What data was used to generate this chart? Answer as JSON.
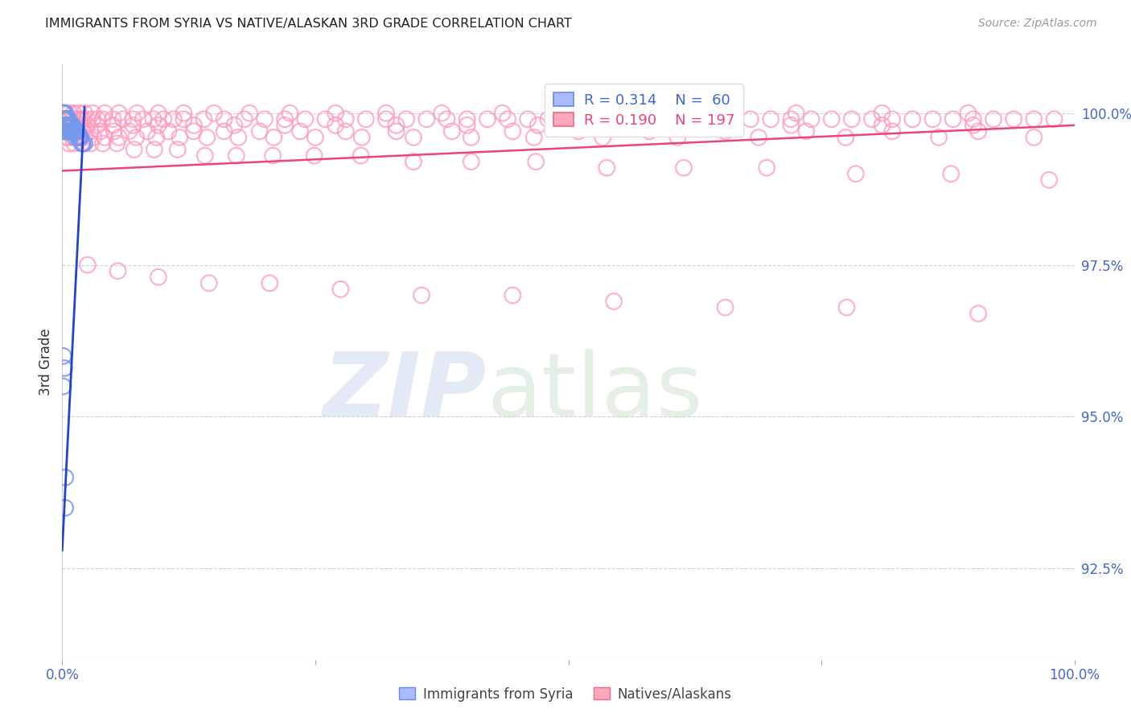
{
  "title": "IMMIGRANTS FROM SYRIA VS NATIVE/ALASKAN 3RD GRADE CORRELATION CHART",
  "source_text": "Source: ZipAtlas.com",
  "ylabel": "3rd Grade",
  "ylabel_right_ticks": [
    "100.0%",
    "97.5%",
    "95.0%",
    "92.5%"
  ],
  "ylabel_right_values": [
    1.0,
    0.975,
    0.95,
    0.925
  ],
  "x_range": [
    0.0,
    1.0
  ],
  "y_range": [
    0.91,
    1.008
  ],
  "color_blue": "#7799ee",
  "color_pink": "#ff99bb",
  "color_blue_line": "#2244cc",
  "color_pink_line": "#ee4477",
  "color_title": "#222222",
  "color_source": "#999999",
  "color_axis_labels": "#4466cc",
  "color_grid": "#cccccc",
  "blue_scatter_x": [
    0.001,
    0.001,
    0.001,
    0.002,
    0.002,
    0.002,
    0.003,
    0.003,
    0.003,
    0.004,
    0.004,
    0.005,
    0.005,
    0.006,
    0.006,
    0.007,
    0.007,
    0.008,
    0.008,
    0.009,
    0.01,
    0.01,
    0.011,
    0.012,
    0.013,
    0.014,
    0.015,
    0.016,
    0.017,
    0.018,
    0.02,
    0.022,
    0.001,
    0.001,
    0.001,
    0.002,
    0.002,
    0.003,
    0.003,
    0.004,
    0.004,
    0.005,
    0.006,
    0.006,
    0.007,
    0.008,
    0.009,
    0.01,
    0.011,
    0.012,
    0.013,
    0.015,
    0.016,
    0.018,
    0.02,
    0.001,
    0.001,
    0.002,
    0.003,
    0.003
  ],
  "blue_scatter_y": [
    1.0,
    1.0,
    1.0,
    1.0,
    0.999,
    0.998,
    1.0,
    0.999,
    0.998,
    0.999,
    0.998,
    0.999,
    0.998,
    0.999,
    0.998,
    0.998,
    0.997,
    0.998,
    0.997,
    0.997,
    0.998,
    0.997,
    0.997,
    0.997,
    0.997,
    0.997,
    0.997,
    0.996,
    0.996,
    0.996,
    0.995,
    0.995,
    0.999,
    0.998,
    0.997,
    0.999,
    0.998,
    0.999,
    0.998,
    0.999,
    0.997,
    0.998,
    0.999,
    0.997,
    0.998,
    0.998,
    0.998,
    0.998,
    0.997,
    0.997,
    0.996,
    0.997,
    0.996,
    0.996,
    0.995,
    0.96,
    0.955,
    0.958,
    0.94,
    0.935
  ],
  "pink_scatter_x": [
    0.002,
    0.004,
    0.006,
    0.008,
    0.01,
    0.012,
    0.015,
    0.018,
    0.02,
    0.025,
    0.03,
    0.035,
    0.04,
    0.05,
    0.06,
    0.07,
    0.08,
    0.09,
    0.1,
    0.11,
    0.12,
    0.14,
    0.16,
    0.18,
    0.2,
    0.22,
    0.24,
    0.26,
    0.28,
    0.3,
    0.32,
    0.34,
    0.36,
    0.38,
    0.4,
    0.42,
    0.44,
    0.46,
    0.48,
    0.5,
    0.52,
    0.54,
    0.56,
    0.58,
    0.6,
    0.62,
    0.64,
    0.66,
    0.68,
    0.7,
    0.72,
    0.74,
    0.76,
    0.78,
    0.8,
    0.82,
    0.84,
    0.86,
    0.88,
    0.9,
    0.92,
    0.94,
    0.96,
    0.98,
    0.003,
    0.005,
    0.008,
    0.012,
    0.018,
    0.025,
    0.035,
    0.05,
    0.07,
    0.095,
    0.13,
    0.17,
    0.22,
    0.27,
    0.33,
    0.4,
    0.47,
    0.55,
    0.63,
    0.72,
    0.81,
    0.9,
    0.004,
    0.007,
    0.011,
    0.016,
    0.022,
    0.03,
    0.042,
    0.056,
    0.074,
    0.095,
    0.12,
    0.15,
    0.185,
    0.225,
    0.27,
    0.32,
    0.375,
    0.435,
    0.5,
    0.57,
    0.645,
    0.725,
    0.81,
    0.895,
    0.005,
    0.009,
    0.014,
    0.02,
    0.028,
    0.038,
    0.051,
    0.066,
    0.084,
    0.105,
    0.13,
    0.16,
    0.195,
    0.235,
    0.28,
    0.33,
    0.385,
    0.445,
    0.51,
    0.58,
    0.655,
    0.735,
    0.82,
    0.905,
    0.003,
    0.006,
    0.01,
    0.015,
    0.022,
    0.031,
    0.042,
    0.056,
    0.073,
    0.093,
    0.116,
    0.143,
    0.174,
    0.209,
    0.25,
    0.296,
    0.347,
    0.404,
    0.466,
    0.534,
    0.608,
    0.688,
    0.774,
    0.866,
    0.96,
    0.007,
    0.012,
    0.019,
    0.028,
    0.04,
    0.054,
    0.071,
    0.091,
    0.114,
    0.141,
    0.172,
    0.208,
    0.249,
    0.295,
    0.347,
    0.404,
    0.468,
    0.538,
    0.614,
    0.696,
    0.784,
    0.878,
    0.975,
    0.025,
    0.055,
    0.095,
    0.145,
    0.205,
    0.275,
    0.355,
    0.445,
    0.545,
    0.655,
    0.775,
    0.905
  ],
  "pink_scatter_y": [
    0.999,
    0.999,
    0.999,
    0.999,
    0.999,
    0.999,
    0.999,
    0.999,
    0.999,
    0.999,
    0.999,
    0.999,
    0.999,
    0.999,
    0.999,
    0.999,
    0.999,
    0.999,
    0.999,
    0.999,
    0.999,
    0.999,
    0.999,
    0.999,
    0.999,
    0.999,
    0.999,
    0.999,
    0.999,
    0.999,
    0.999,
    0.999,
    0.999,
    0.999,
    0.999,
    0.999,
    0.999,
    0.999,
    0.999,
    0.999,
    0.999,
    0.999,
    0.999,
    0.999,
    0.999,
    0.999,
    0.999,
    0.999,
    0.999,
    0.999,
    0.999,
    0.999,
    0.999,
    0.999,
    0.999,
    0.999,
    0.999,
    0.999,
    0.999,
    0.999,
    0.999,
    0.999,
    0.999,
    0.999,
    0.998,
    0.998,
    0.998,
    0.998,
    0.998,
    0.998,
    0.998,
    0.998,
    0.998,
    0.998,
    0.998,
    0.998,
    0.998,
    0.998,
    0.998,
    0.998,
    0.998,
    0.998,
    0.998,
    0.998,
    0.998,
    0.998,
    1.0,
    1.0,
    1.0,
    1.0,
    1.0,
    1.0,
    1.0,
    1.0,
    1.0,
    1.0,
    1.0,
    1.0,
    1.0,
    1.0,
    1.0,
    1.0,
    1.0,
    1.0,
    1.0,
    1.0,
    1.0,
    1.0,
    1.0,
    1.0,
    0.997,
    0.997,
    0.997,
    0.997,
    0.997,
    0.997,
    0.997,
    0.997,
    0.997,
    0.997,
    0.997,
    0.997,
    0.997,
    0.997,
    0.997,
    0.997,
    0.997,
    0.997,
    0.997,
    0.997,
    0.997,
    0.997,
    0.997,
    0.997,
    0.996,
    0.996,
    0.996,
    0.996,
    0.996,
    0.996,
    0.996,
    0.996,
    0.996,
    0.996,
    0.996,
    0.996,
    0.996,
    0.996,
    0.996,
    0.996,
    0.996,
    0.996,
    0.996,
    0.996,
    0.996,
    0.996,
    0.996,
    0.996,
    0.996,
    0.995,
    0.995,
    0.995,
    0.995,
    0.995,
    0.995,
    0.994,
    0.994,
    0.994,
    0.993,
    0.993,
    0.993,
    0.993,
    0.993,
    0.992,
    0.992,
    0.992,
    0.991,
    0.991,
    0.991,
    0.99,
    0.99,
    0.989,
    0.975,
    0.974,
    0.973,
    0.972,
    0.972,
    0.971,
    0.97,
    0.97,
    0.969,
    0.968,
    0.968,
    0.967
  ]
}
